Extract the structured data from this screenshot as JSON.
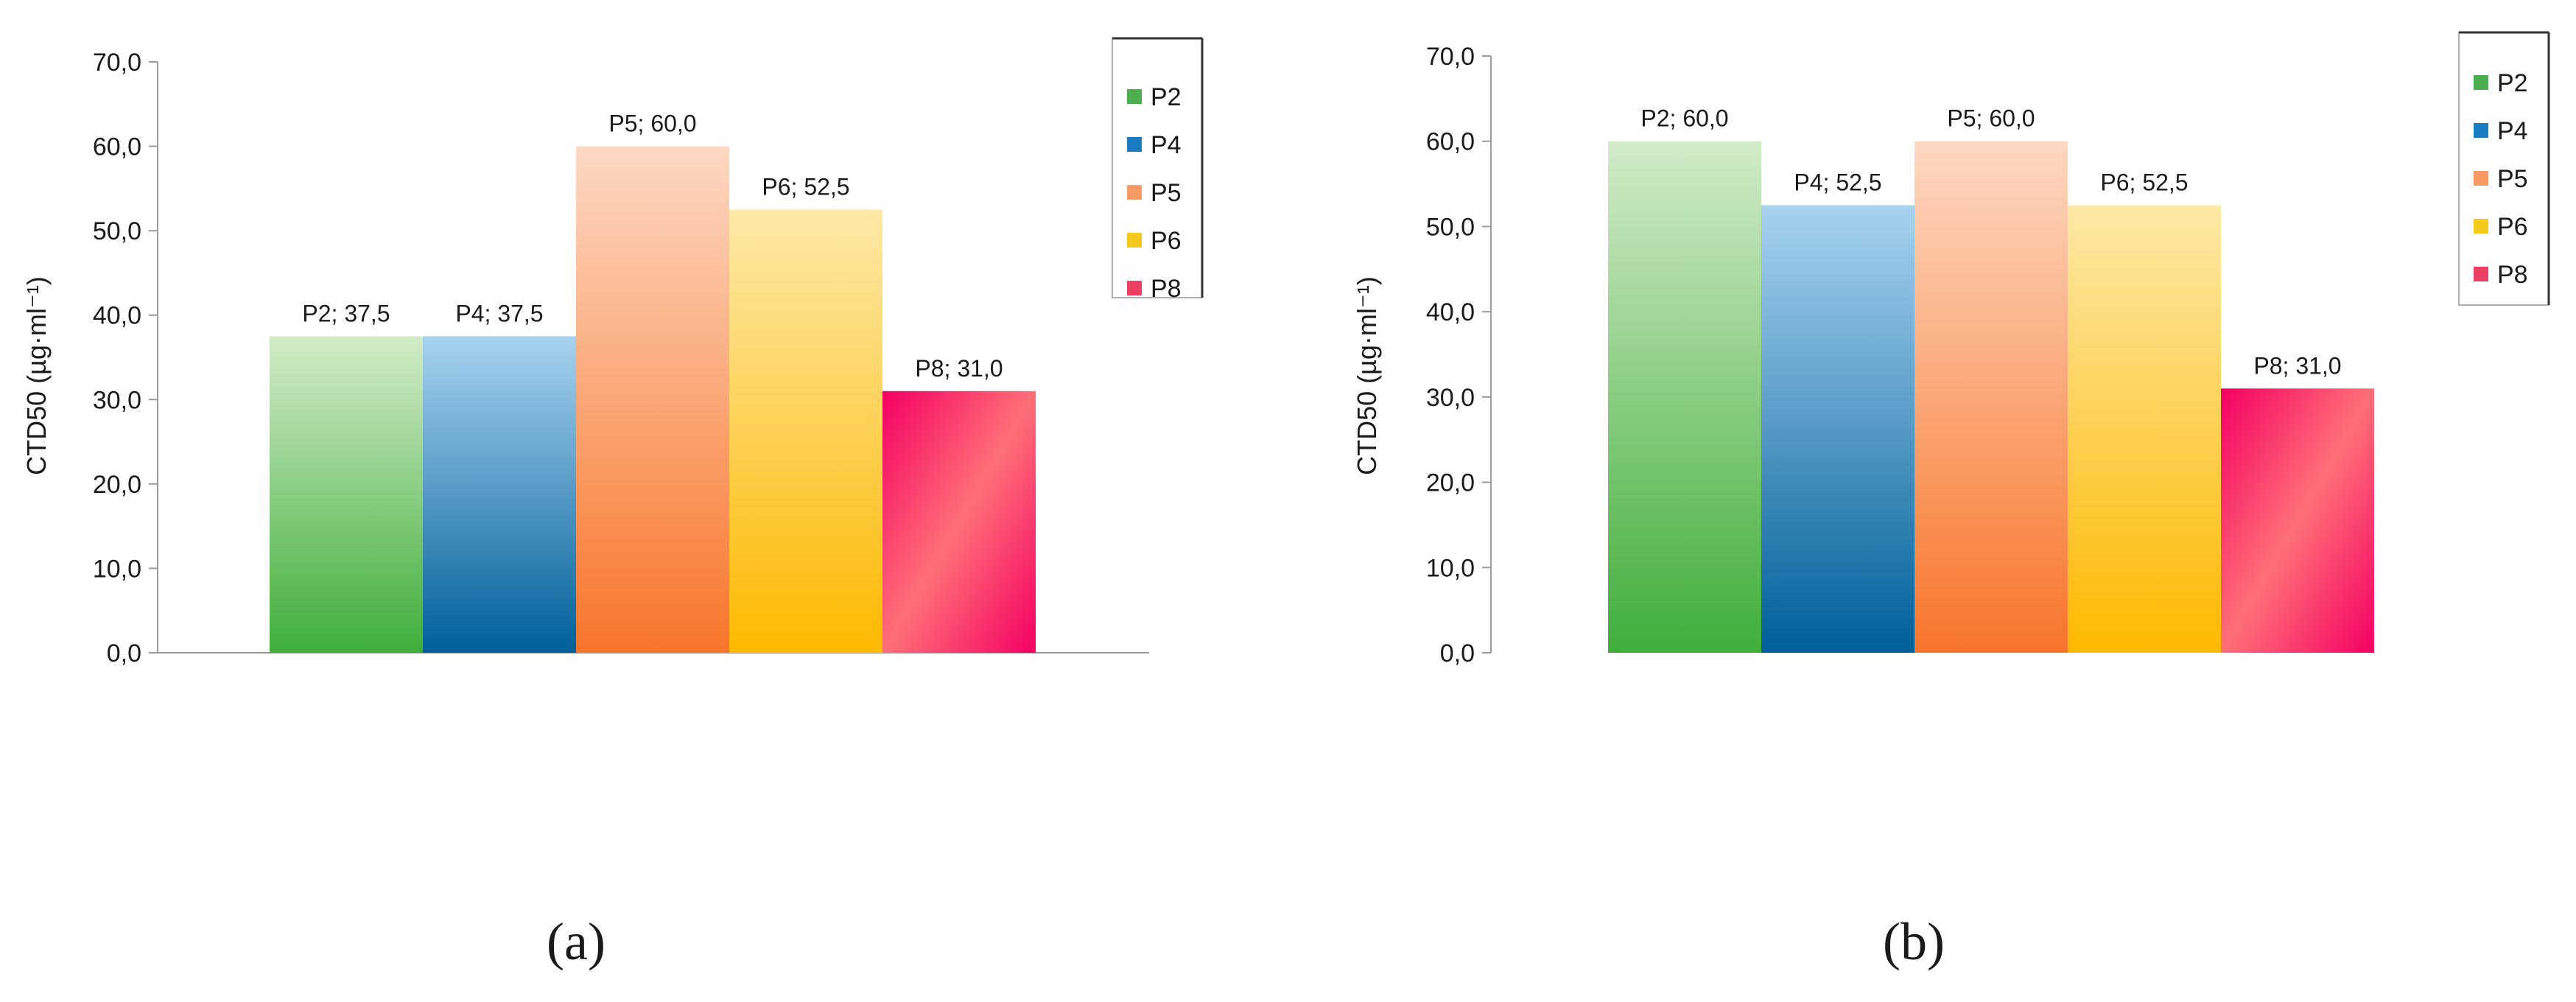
{
  "chart_data": [
    {
      "type": "bar",
      "panel": "(a)",
      "categories": [
        "P2",
        "P4",
        "P5",
        "P6",
        "P8"
      ],
      "values": [
        37.5,
        37.5,
        60.0,
        52.5,
        31.0
      ],
      "data_labels": [
        "P2; 37,5",
        "P4; 37,5",
        "P5; 60,0",
        "P6; 52,5",
        "P8; 31,0"
      ],
      "ylabel": "CTD50 (µg·ml⁻¹)",
      "ylim": [
        0,
        70
      ],
      "yticks": [
        "0,0",
        "10,0",
        "20,0",
        "30,0",
        "40,0",
        "50,0",
        "60,0",
        "70,0"
      ],
      "grid": false,
      "legend": {
        "placement": "top-right",
        "entries": [
          "P2",
          "P4",
          "P5",
          "P6",
          "P8"
        ]
      }
    },
    {
      "type": "bar",
      "panel": "(b)",
      "categories": [
        "P2",
        "P4",
        "P5",
        "P6",
        "P8"
      ],
      "values": [
        60.0,
        52.5,
        60.0,
        52.5,
        31.0
      ],
      "data_labels": [
        "P2; 60,0",
        "P4; 52,5",
        "P5; 60,0",
        "P6; 52,5",
        "P8; 31,0"
      ],
      "ylabel": "CTD50 (µg·ml⁻¹)",
      "ylim": [
        0,
        70
      ],
      "yticks": [
        "0,0",
        "10,0",
        "20,0",
        "30,0",
        "40,0",
        "50,0",
        "60,0",
        "70,0"
      ],
      "grid": false,
      "legend": {
        "placement": "top-right",
        "entries": [
          "P2",
          "P4",
          "P5",
          "P6",
          "P8"
        ]
      }
    }
  ],
  "series_colors": {
    "P2": {
      "light": "#d2ebc8",
      "dark": "#3fae3a",
      "legend": "#4cae4c"
    },
    "P4": {
      "light": "#a7d2ef",
      "dark": "#00609a",
      "legend": "#1a7cc0"
    },
    "P5": {
      "light": "#fdd8c2",
      "dark": "#f7752a",
      "legend": "#f79a63"
    },
    "P6": {
      "light": "#fde8a6",
      "dark": "#fdb900",
      "legend": "#f5c81c"
    },
    "P8": {
      "light": "#ff6f77",
      "dark": "#f50064",
      "legend": "#ef3e63"
    }
  }
}
